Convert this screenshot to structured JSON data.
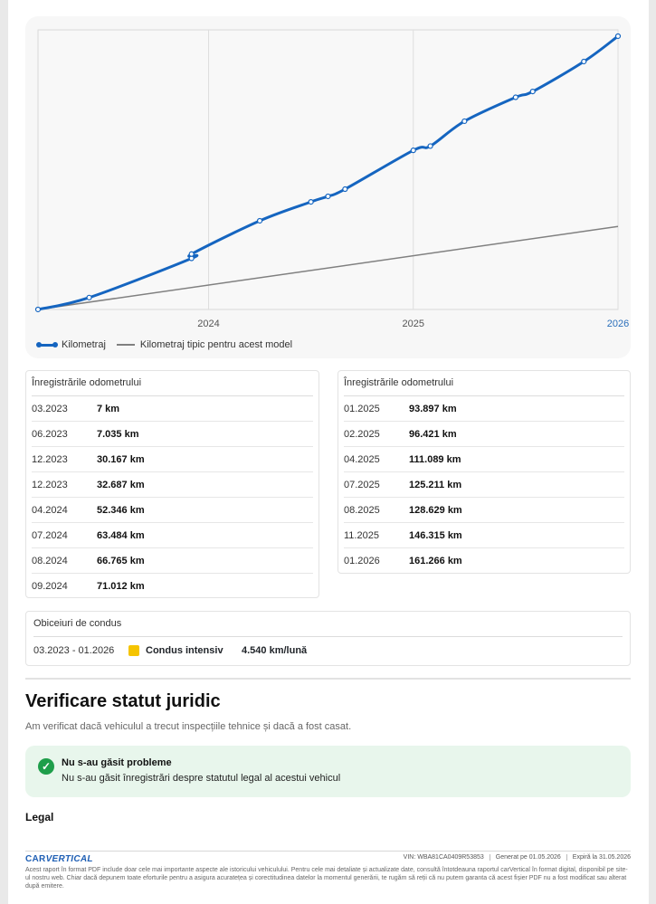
{
  "chart_data": {
    "type": "line",
    "x_ticks": [
      "2024",
      "2025",
      "2026"
    ],
    "series": [
      {
        "name": "Kilometraj",
        "color": "#1565c0",
        "points": [
          {
            "date": "2023-03",
            "value": 7
          },
          {
            "date": "2023-06",
            "value": 7035
          },
          {
            "date": "2023-12",
            "value": 30167
          },
          {
            "date": "2023-12",
            "value": 32687
          },
          {
            "date": "2024-04",
            "value": 52346
          },
          {
            "date": "2024-07",
            "value": 63484
          },
          {
            "date": "2024-08",
            "value": 66765
          },
          {
            "date": "2024-09",
            "value": 71012
          },
          {
            "date": "2025-01",
            "value": 93897
          },
          {
            "date": "2025-02",
            "value": 96421
          },
          {
            "date": "2025-04",
            "value": 111089
          },
          {
            "date": "2025-07",
            "value": 125211
          },
          {
            "date": "2025-08",
            "value": 128629
          },
          {
            "date": "2025-11",
            "value": 146315
          },
          {
            "date": "2026-01",
            "value": 161266
          }
        ]
      },
      {
        "name": "Kilometraj tipic pentru acest model",
        "color": "#808080",
        "points": [
          {
            "date": "2023-03",
            "value": 0
          },
          {
            "date": "2026-01",
            "value": 49000
          }
        ]
      }
    ],
    "ylim": [
      0,
      165000
    ],
    "grid": true,
    "legend_position": "bottom-left"
  },
  "odometer": {
    "left": {
      "title": "Înregistrările odometrului",
      "rows": [
        {
          "date": "03.2023",
          "km": "7 km"
        },
        {
          "date": "06.2023",
          "km": "7.035 km"
        },
        {
          "date": "12.2023",
          "km": "30.167 km"
        },
        {
          "date": "12.2023",
          "km": "32.687 km"
        },
        {
          "date": "04.2024",
          "km": "52.346 km"
        },
        {
          "date": "07.2024",
          "km": "63.484 km"
        },
        {
          "date": "08.2024",
          "km": "66.765 km"
        },
        {
          "date": "09.2024",
          "km": "71.012 km"
        }
      ]
    },
    "right": {
      "title": "Înregistrările odometrului",
      "rows": [
        {
          "date": "01.2025",
          "km": "93.897 km"
        },
        {
          "date": "02.2025",
          "km": "96.421 km"
        },
        {
          "date": "04.2025",
          "km": "111.089 km"
        },
        {
          "date": "07.2025",
          "km": "125.211 km"
        },
        {
          "date": "08.2025",
          "km": "128.629 km"
        },
        {
          "date": "11.2025",
          "km": "146.315 km"
        },
        {
          "date": "01.2026",
          "km": "161.266 km"
        }
      ]
    }
  },
  "habits": {
    "title": "Obiceiuri de condus",
    "period": "03.2023 - 01.2026",
    "style": "Condus intensiv",
    "style_color": "#f5c400",
    "avg": "4.540 km/lună"
  },
  "legal_section": {
    "heading": "Verificare statut juridic",
    "subtitle": "Am verificat dacă vehiculul a trecut inspecțiile tehnice și dacă a fost casat.",
    "status_icon": "check-circle-icon",
    "status_title": "Nu s-au găsit probleme",
    "status_text": "Nu s-au găsit înregistrări despre statutul legal al acestui vehicul",
    "subheading": "Legal"
  },
  "footer": {
    "brand_a": "car",
    "brand_b": "VERTICAL",
    "vin": "VIN: WBA81CA0409R53853",
    "generated": "Generat pe 01.05.2026",
    "expires": "Expiră la 31.05.2026",
    "disclaimer": "Acest raport în format PDF include doar cele mai importante aspecte ale istoricului vehiculului. Pentru cele mai detaliate și actualizate date, consultă întotdeauna raportul carVertical în format digital, disponibil pe site-ul nostru web. Chiar dacă depunem toate eforturile pentru a asigura acuratețea și corectitudinea datelor la momentul generării, te rugăm să reții că nu putem garanta că acest fișier PDF nu a fost modificat sau alterat după emitere."
  }
}
